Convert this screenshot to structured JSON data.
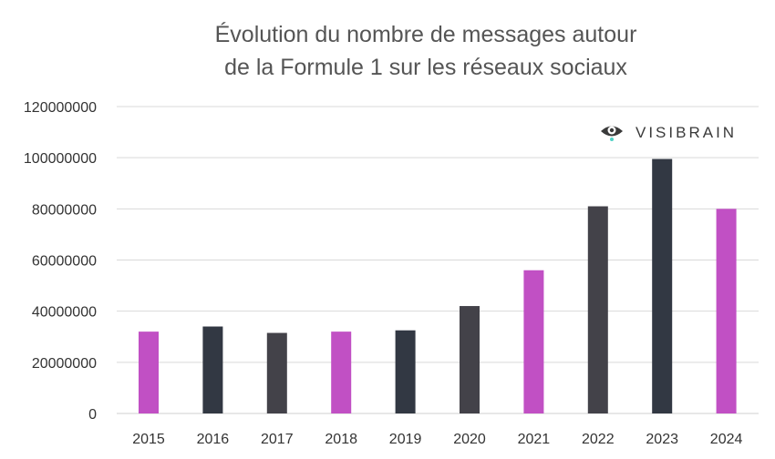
{
  "chart_data": {
    "type": "bar",
    "title_lines": [
      "Évolution du nombre de messages autour",
      "de la Formule 1 sur les réseaux sociaux"
    ],
    "categories": [
      "2015",
      "2016",
      "2017",
      "2018",
      "2019",
      "2020",
      "2021",
      "2022",
      "2023",
      "2024"
    ],
    "values": [
      32000000,
      34000000,
      31500000,
      32000000,
      32500000,
      42000000,
      56000000,
      81000000,
      99500000,
      80000000
    ],
    "bar_colors": [
      "#c150c4",
      "#323843",
      "#434249",
      "#c150c4",
      "#323843",
      "#434249",
      "#c150c4",
      "#434249",
      "#323843",
      "#c150c4"
    ],
    "ylim": [
      0,
      120000000
    ],
    "y_ticks": [
      0,
      20000000,
      40000000,
      60000000,
      80000000,
      100000000,
      120000000
    ],
    "y_tick_labels": [
      "0",
      "20000000",
      "40000000",
      "60000000",
      "80000000",
      "100000000",
      "120000000"
    ],
    "xlabel": "",
    "ylabel": "",
    "grid": true,
    "legend": "none"
  },
  "watermark": {
    "text": "VISIBRAIN",
    "icon": "eye-icon",
    "icon_color": "#3a3a3a",
    "accent_color": "#4fd1c5"
  }
}
